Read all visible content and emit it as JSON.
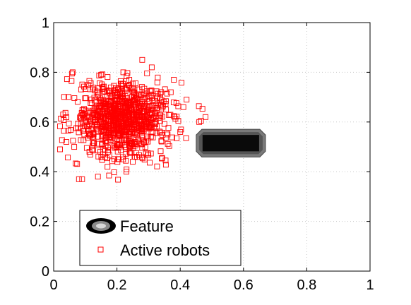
{
  "chart_data": {
    "type": "scatter",
    "title": "",
    "xlabel": "",
    "ylabel": "",
    "xlim": [
      0,
      1
    ],
    "ylim": [
      0,
      1
    ],
    "grid": true,
    "legend_position": "bottom-left",
    "x_ticks": [
      "0",
      "0.2",
      "0.4",
      "0.6",
      "0.8",
      "1"
    ],
    "y_ticks": [
      "0",
      "0.2",
      "0.4",
      "0.6",
      "0.8",
      "1"
    ],
    "legend": [
      {
        "label": "Feature",
        "marker": "feature-shape"
      },
      {
        "label": "Active robots",
        "marker": "square-outline"
      }
    ],
    "feature": {
      "x_range": [
        0.455,
        0.665
      ],
      "y_range": [
        0.465,
        0.565
      ],
      "fill_color": "#0a0a0a",
      "outer_color": "#7a7a7a"
    },
    "series": [
      {
        "name": "Active robots",
        "marker": "square-outline",
        "color": "#ff0000",
        "cluster": {
          "center": [
            0.215,
            0.61
          ],
          "std": [
            0.075,
            0.075
          ],
          "count": 900,
          "x_extent": [
            0.02,
            0.48
          ],
          "y_extent": [
            0.36,
            0.85
          ]
        },
        "points": [
          [
            0.06,
            0.8
          ],
          [
            0.09,
            0.37
          ],
          [
            0.08,
            0.37
          ],
          [
            0.03,
            0.63
          ],
          [
            0.02,
            0.49
          ],
          [
            0.04,
            0.52
          ],
          [
            0.46,
            0.6
          ],
          [
            0.48,
            0.62
          ],
          [
            0.41,
            0.66
          ],
          [
            0.42,
            0.69
          ],
          [
            0.37,
            0.72
          ],
          [
            0.38,
            0.77
          ],
          [
            0.28,
            0.85
          ],
          [
            0.31,
            0.82
          ],
          [
            0.22,
            0.8
          ],
          [
            0.15,
            0.79
          ],
          [
            0.25,
            0.44
          ],
          [
            0.17,
            0.42
          ],
          [
            0.14,
            0.38
          ],
          [
            0.23,
            0.4
          ],
          [
            0.36,
            0.55
          ],
          [
            0.4,
            0.56
          ]
        ]
      }
    ]
  }
}
